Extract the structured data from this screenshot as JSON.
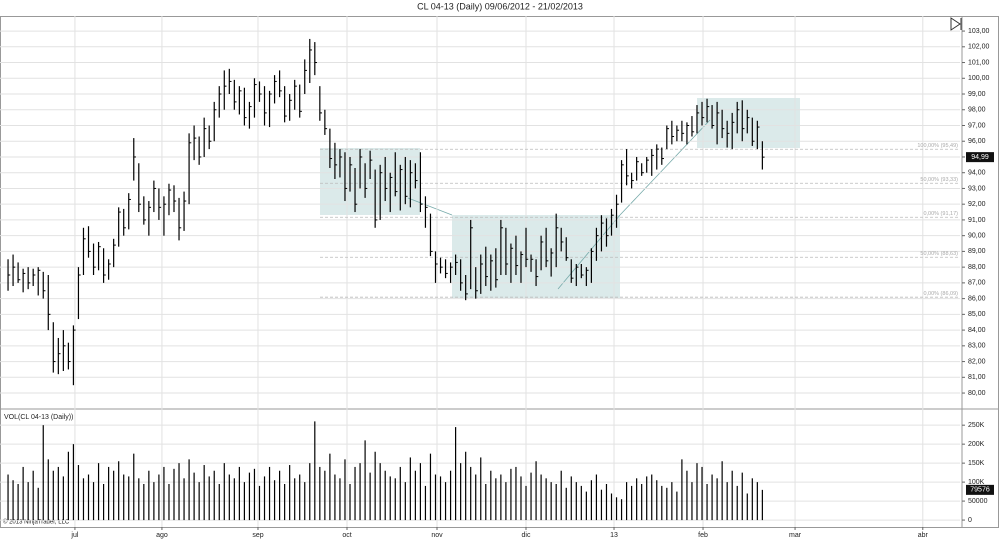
{
  "chart_data": [
    {
      "type": "ohlc",
      "title": "CL 04-13 (Daily)  09/06/2012 - 21/02/2013",
      "color": "#000000",
      "grid": true,
      "x": [
        0,
        1,
        2,
        3,
        4,
        5,
        6,
        7,
        8,
        9,
        10,
        11,
        12,
        13,
        14,
        15,
        16,
        17,
        18,
        19,
        20,
        21,
        22,
        23,
        24,
        25,
        26,
        27,
        28,
        29,
        30,
        31,
        32,
        33,
        34,
        35,
        36,
        37,
        38,
        39,
        40,
        41,
        42,
        43,
        44,
        45,
        46,
        47,
        48,
        49,
        50,
        51,
        52,
        53,
        54,
        55,
        56,
        57,
        58,
        59,
        60,
        61,
        62,
        63,
        64,
        65,
        66,
        67,
        68,
        69,
        70,
        71,
        72,
        73,
        74,
        75,
        76,
        77,
        78,
        79,
        80,
        81,
        82,
        83,
        84,
        85,
        86,
        87,
        88,
        89,
        90,
        91,
        92,
        93,
        94,
        95,
        96,
        97,
        98,
        99,
        100,
        101,
        102,
        103,
        104,
        105,
        106,
        107,
        108,
        109,
        110,
        111,
        112,
        113,
        114,
        115,
        116,
        117,
        118,
        119,
        120,
        121,
        122,
        123,
        124,
        125,
        126,
        127,
        128,
        129,
        130,
        131,
        132,
        133,
        134,
        135,
        136,
        137,
        138,
        139,
        140,
        141,
        142,
        143,
        144,
        145,
        146,
        147,
        148,
        149,
        150
      ],
      "high": [
        88.5,
        88.8,
        88.3,
        87.9,
        88.0,
        87.9,
        88.0,
        87.7,
        87.5,
        84.5,
        83.5,
        84.0,
        83.2,
        84.3,
        88.0,
        90.5,
        90.6,
        89.5,
        89.6,
        89.2,
        88.5,
        89.8,
        91.8,
        91.7,
        92.7,
        96.2,
        94.6,
        92.5,
        92.2,
        93.5,
        93.0,
        92.5,
        93.3,
        93.2,
        92.4,
        92.8,
        96.5,
        97.0,
        96.3,
        97.5,
        97.0,
        98.5,
        99.5,
        100.5,
        100.6,
        99.9,
        99.5,
        99.4,
        98.5,
        100.0,
        99.8,
        99.5,
        99.2,
        100.2,
        100.5,
        99.5,
        99.0,
        99.9,
        99.6,
        101.2,
        102.5,
        102.3,
        99.5,
        98.0,
        96.8,
        95.9,
        95.5,
        95.3,
        95.0,
        94.3,
        95.5,
        94.6,
        95.4,
        94.2,
        94.5,
        95.0,
        94.0,
        95.3,
        94.5,
        95.0,
        94.8,
        94.6,
        95.3,
        92.5,
        91.4,
        89.0,
        88.6,
        88.5,
        88.3,
        88.8,
        88.5,
        87.5,
        91.0,
        88.0,
        88.8,
        89.3,
        88.8,
        89.2,
        91.0,
        90.5,
        89.5,
        90.0,
        89.0,
        90.5,
        88.8,
        88.5,
        90.0,
        90.5,
        89.2,
        91.4,
        90.5,
        89.9,
        88.5,
        88.2,
        88.2,
        88.0,
        89.2,
        90.5,
        91.3,
        91.1,
        91.7,
        92.6,
        94.8,
        95.5,
        94.0,
        95.0,
        94.6,
        95.0,
        95.5,
        95.8,
        95.6,
        97.0,
        97.3,
        97.0,
        97.3,
        97.2,
        97.6,
        98.3,
        98.5,
        98.7,
        98.3,
        98.5,
        98.0,
        97.3,
        97.8,
        98.5,
        98.6,
        98.0,
        97.5,
        97.3,
        96.0
      ],
      "low": [
        86.5,
        86.8,
        87.0,
        86.4,
        86.6,
        86.8,
        86.2,
        86.0,
        84.0,
        81.3,
        81.2,
        81.4,
        81.5,
        80.5,
        84.7,
        87.5,
        88.6,
        87.5,
        87.8,
        87.0,
        87.2,
        88.0,
        89.3,
        90.0,
        90.4,
        93.5,
        91.5,
        90.7,
        90.0,
        91.5,
        91.0,
        90.0,
        91.3,
        91.5,
        89.7,
        90.3,
        92.0,
        94.8,
        94.5,
        95.0,
        95.5,
        96.0,
        97.5,
        98.0,
        99.0,
        98.0,
        97.7,
        97.0,
        96.8,
        97.5,
        98.5,
        97.0,
        96.9,
        98.4,
        98.8,
        97.2,
        97.3,
        98.0,
        97.5,
        99.0,
        99.7,
        100.2,
        97.3,
        96.4,
        94.3,
        93.6,
        93.7,
        92.2,
        92.8,
        91.5,
        93.0,
        92.4,
        93.6,
        90.5,
        91.0,
        92.2,
        91.5,
        92.5,
        91.6,
        92.0,
        91.8,
        93.0,
        91.5,
        90.5,
        88.7,
        87.0,
        87.6,
        87.3,
        87.0,
        87.5,
        86.5,
        85.9,
        86.6,
        86.0,
        86.3,
        86.8,
        86.5,
        86.7,
        87.5,
        87.5,
        87.0,
        87.5,
        87.0,
        88.0,
        87.7,
        86.8,
        87.8,
        88.0,
        87.4,
        88.0,
        89.0,
        88.4,
        87.0,
        86.8,
        87.3,
        86.8,
        87.0,
        88.4,
        89.0,
        89.3,
        90.0,
        90.5,
        92.1,
        93.2,
        93.0,
        93.5,
        93.8,
        94.0,
        93.8,
        94.2,
        94.5,
        95.5,
        95.8,
        96.0,
        96.0,
        95.8,
        96.3,
        96.5,
        97.0,
        97.2,
        96.8,
        95.8,
        96.2,
        95.6,
        95.5,
        96.5,
        96.0,
        96.5,
        95.7,
        95.5,
        94.2
      ],
      "close": [
        87.5,
        88.0,
        87.2,
        87.6,
        87.0,
        87.5,
        87.8,
        86.5,
        85.0,
        82.0,
        82.5,
        83.0,
        82.0,
        84.0,
        87.5,
        89.8,
        89.0,
        88.0,
        89.3,
        87.5,
        88.2,
        89.4,
        91.5,
        90.5,
        92.3,
        95.0,
        92.0,
        91.0,
        91.8,
        93.0,
        91.8,
        92.0,
        92.9,
        92.2,
        90.5,
        92.2,
        95.9,
        96.2,
        95.0,
        96.8,
        96.0,
        98.0,
        99.0,
        99.5,
        99.8,
        98.5,
        99.2,
        97.5,
        98.2,
        99.6,
        99.0,
        97.8,
        99.0,
        99.8,
        99.2,
        97.6,
        98.6,
        99.5,
        97.9,
        100.5,
        101.8,
        101.0,
        97.8,
        96.8,
        94.9,
        94.5,
        95.0,
        93.0,
        94.5,
        92.0,
        95.0,
        93.0,
        94.8,
        91.0,
        94.0,
        93.0,
        93.7,
        92.8,
        94.2,
        92.5,
        94.0,
        93.5,
        92.0,
        91.8,
        89.0,
        88.2,
        88.0,
        87.6,
        88.0,
        88.3,
        87.0,
        86.3,
        90.5,
        86.5,
        88.2,
        87.4,
        88.4,
        87.2,
        90.5,
        88.2,
        89.2,
        88.1,
        88.8,
        88.5,
        88.5,
        87.4,
        89.6,
        88.4,
        88.9,
        90.5,
        89.6,
        88.6,
        87.3,
        88.0,
        87.5,
        87.8,
        89.0,
        90.0,
        90.8,
        90.0,
        91.3,
        92.0,
        94.5,
        93.8,
        93.5,
        94.7,
        94.0,
        94.8,
        95.1,
        95.5,
        94.9,
        96.8,
        96.3,
        96.7,
        96.5,
        97.0,
        96.6,
        97.8,
        97.5,
        98.2,
        97.0,
        97.8,
        96.8,
        96.5,
        97.2,
        98.0,
        96.8,
        97.5,
        96.0,
        96.9,
        94.99
      ],
      "last_label": "94,99",
      "xlim": [
        -1.6,
        189.3
      ],
      "xticks": [
        {
          "value": 13.3,
          "label": "jul"
        },
        {
          "value": 30.6,
          "label": "ago"
        },
        {
          "value": 49.7,
          "label": "sep"
        },
        {
          "value": 67.4,
          "label": "oct"
        },
        {
          "value": 85.3,
          "label": "nov"
        },
        {
          "value": 103.0,
          "label": "dic"
        },
        {
          "value": 120.5,
          "label": "13"
        },
        {
          "value": 138.2,
          "label": "feb"
        },
        {
          "value": 156.5,
          "label": "mar"
        },
        {
          "value": 181.9,
          "label": "abr"
        }
      ],
      "ylim": [
        79.05,
        103.83
      ],
      "yticks": [
        {
          "value": 80,
          "label": "80,00"
        },
        {
          "value": 81,
          "label": "81,00"
        },
        {
          "value": 82,
          "label": "82,00"
        },
        {
          "value": 83,
          "label": "83,00"
        },
        {
          "value": 84,
          "label": "84,00"
        },
        {
          "value": 85,
          "label": "85,00"
        },
        {
          "value": 86,
          "label": "86,00"
        },
        {
          "value": 87,
          "label": "87,00"
        },
        {
          "value": 88,
          "label": "88,00"
        },
        {
          "value": 89,
          "label": "89,00"
        },
        {
          "value": 90,
          "label": "90,00"
        },
        {
          "value": 91,
          "label": "91,00"
        },
        {
          "value": 92,
          "label": "92,00"
        },
        {
          "value": 93,
          "label": "93,00"
        },
        {
          "value": 94,
          "label": "94,00"
        },
        {
          "value": 95,
          "label": "95,00"
        },
        {
          "value": 96,
          "label": "96,00"
        },
        {
          "value": 97,
          "label": "97,00"
        },
        {
          "value": 98,
          "label": "98,00"
        },
        {
          "value": 99,
          "label": "99,00"
        },
        {
          "value": 100,
          "label": "100,00"
        },
        {
          "value": 101,
          "label": "101,00"
        },
        {
          "value": 102,
          "label": "102,00"
        },
        {
          "value": 103,
          "label": "103,00"
        }
      ],
      "annotations": [
        {
          "text": "100,00% (95,49)",
          "value": 95.49
        },
        {
          "text": "50,00% (93,33)",
          "value": 93.33
        },
        {
          "text": "0,00% (91,17)",
          "value": 91.17
        },
        {
          "text": "50,00% (88,63)",
          "value": 88.63
        },
        {
          "text": "0,00% (86,09)",
          "value": 86.09
        }
      ]
    },
    {
      "type": "bar",
      "label": "VOL(CL 04-13 (Daily))",
      "footer": "© 2013 NinjaTrader, LLC",
      "color": "#000000",
      "values": [
        120000,
        105000,
        95000,
        140000,
        100000,
        130000,
        85000,
        250000,
        160000,
        130000,
        140000,
        115000,
        180000,
        200000,
        145000,
        110000,
        120000,
        100000,
        150000,
        95000,
        140000,
        130000,
        155000,
        120000,
        115000,
        175000,
        110000,
        95000,
        130000,
        100000,
        120000,
        140000,
        95000,
        135000,
        150000,
        110000,
        160000,
        125000,
        100000,
        145000,
        115000,
        130000,
        95000,
        150000,
        120000,
        110000,
        140000,
        100000,
        125000,
        135000,
        90000,
        115000,
        140000,
        105000,
        130000,
        95000,
        145000,
        110000,
        120000,
        100000,
        150000,
        260000,
        140000,
        130000,
        175000,
        120000,
        110000,
        160000,
        95000,
        140000,
        150000,
        210000,
        125000,
        180000,
        150000,
        130000,
        115000,
        110000,
        140000,
        100000,
        165000,
        130000,
        150000,
        90000,
        175000,
        120000,
        115000,
        100000,
        130000,
        245000,
        150000,
        180000,
        140000,
        120000,
        165000,
        95000,
        130000,
        110000,
        120000,
        100000,
        135000,
        140000,
        115000,
        90000,
        125000,
        155000,
        120000,
        110000,
        100000,
        95000,
        130000,
        85000,
        115000,
        100000,
        90000,
        75000,
        105000,
        120000,
        80000,
        95000,
        70000,
        60000,
        55000,
        100000,
        90000,
        110000,
        95000,
        115000,
        120000,
        105000,
        90000,
        85000,
        100000,
        75000,
        160000,
        130000,
        100000,
        150000,
        140000,
        95000,
        120000,
        110000,
        155000,
        100000,
        130000,
        90000,
        125000,
        70000,
        110000,
        100000,
        79576
      ],
      "ylim": [
        -13000,
        290000
      ],
      "yticks": [
        0,
        50000,
        {
          "value": 100000,
          "label": "100K"
        },
        {
          "value": 150000,
          "label": "150K"
        },
        {
          "value": 200000,
          "label": "200K"
        },
        {
          "value": 250000,
          "label": "250K"
        }
      ]
    }
  ]
}
